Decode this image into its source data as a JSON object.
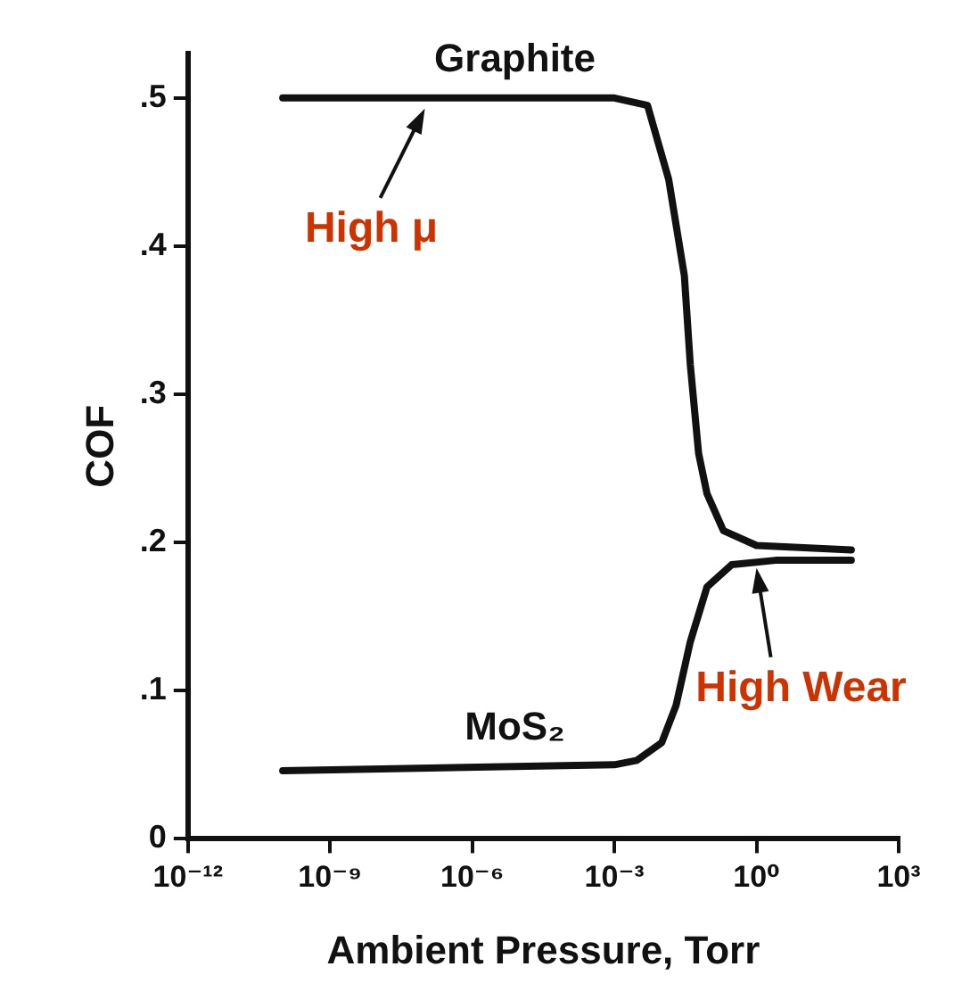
{
  "chart_data": {
    "type": "line",
    "xlabel": "Ambient Pressure, Torr",
    "ylabel": "COF",
    "log": "x",
    "xlim": [
      1e-12,
      1000
    ],
    "ylim": [
      0,
      0.53
    ],
    "xticks": [
      {
        "value": 1e-12,
        "label": "10⁻¹²"
      },
      {
        "value": 1e-09,
        "label": "10⁻⁹"
      },
      {
        "value": 1e-06,
        "label": "10⁻⁶"
      },
      {
        "value": 0.001,
        "label": "10⁻³"
      },
      {
        "value": 1,
        "label": "10⁰"
      },
      {
        "value": 1000,
        "label": "10³"
      }
    ],
    "yticks": [
      {
        "value": 0,
        "label": "0"
      },
      {
        "value": 0.1,
        "label": ".1"
      },
      {
        "value": 0.2,
        "label": ".2"
      },
      {
        "value": 0.3,
        "label": ".3"
      },
      {
        "value": 0.4,
        "label": ".4"
      },
      {
        "value": 0.5,
        "label": ".5"
      }
    ],
    "series": [
      {
        "name": "Graphite",
        "color": "#111111",
        "x": [
          1e-10,
          0.001,
          0.005,
          0.014,
          0.03,
          0.04,
          0.06,
          0.09,
          0.2,
          1,
          100
        ],
        "values": [
          0.5,
          0.5,
          0.495,
          0.445,
          0.38,
          0.32,
          0.26,
          0.233,
          0.208,
          0.198,
          0.195
        ]
      },
      {
        "name": "MoS₂",
        "color": "#111111",
        "x": [
          1e-10,
          0.001,
          0.003,
          0.01,
          0.02,
          0.04,
          0.09,
          0.3,
          2.5,
          100
        ],
        "values": [
          0.046,
          0.05,
          0.053,
          0.065,
          0.09,
          0.133,
          0.17,
          0.185,
          0.188,
          0.188
        ]
      }
    ],
    "annotations": [
      {
        "text": "High μ",
        "x": 1e-07,
        "y": 0.5
      },
      {
        "text": "High Wear",
        "x": 1,
        "y": 0.19
      }
    ],
    "grid": false,
    "legend": false,
    "marker": "none",
    "line_style": "solid"
  }
}
